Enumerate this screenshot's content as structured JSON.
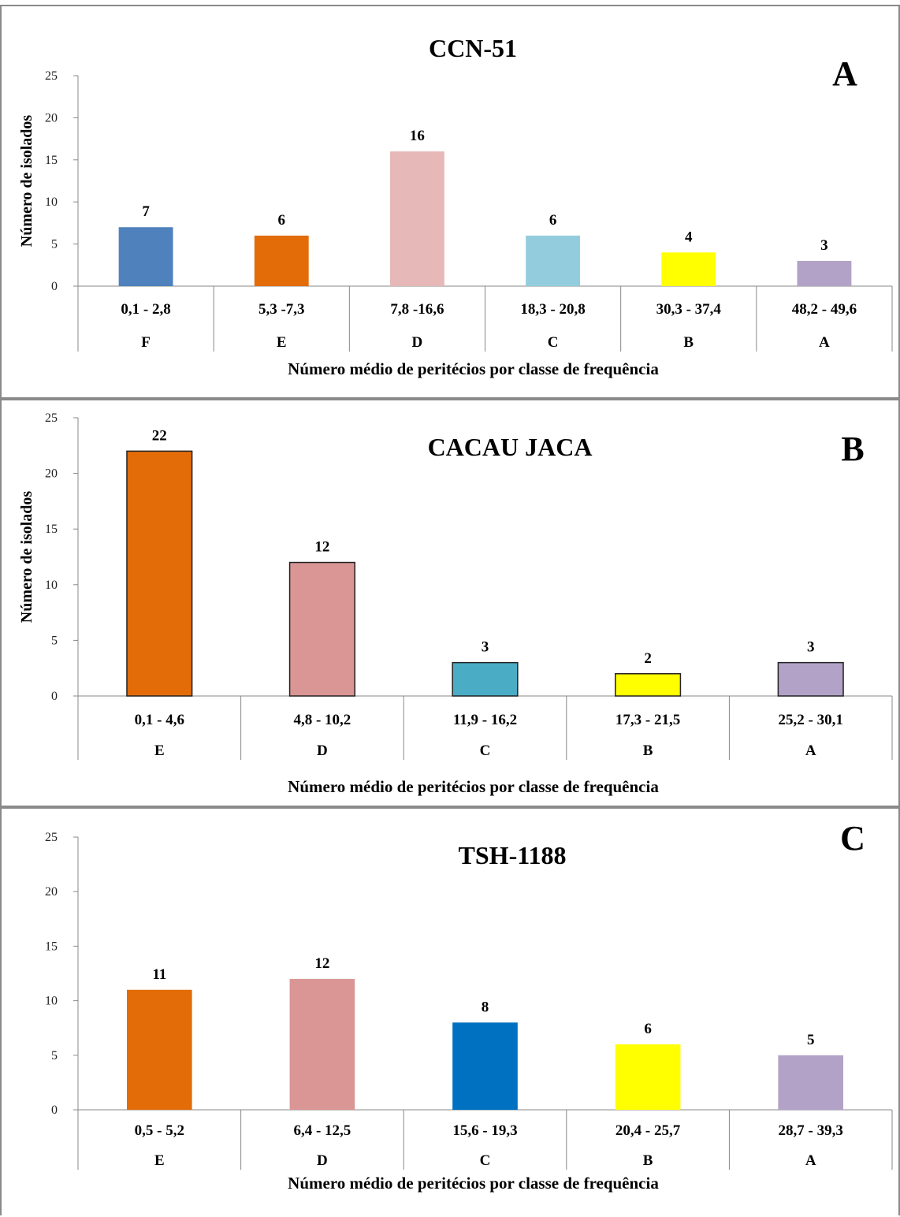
{
  "chart_data": [
    {
      "type": "bar",
      "title": "CCN-51",
      "panel_letter": "A",
      "ylabel": "Número de isolados",
      "xlabel": "Número médio de peritécios por classe de frequência",
      "ylim": [
        0,
        25
      ],
      "yticks": [
        0,
        5,
        10,
        15,
        20,
        25
      ],
      "categories": [
        "0,1 - 2,8",
        "5,3 -7,3",
        "7,8 -16,6",
        "18,3 - 20,8",
        "30,3 - 37,4",
        "48,2 - 49,6"
      ],
      "groups": [
        "F",
        "E",
        "D",
        "C",
        "B",
        "A"
      ],
      "values": [
        7,
        6,
        16,
        6,
        4,
        3
      ],
      "colors": [
        "#4f81bd",
        "#e36c09",
        "#e6b9b8",
        "#93cddd",
        "#ffff00",
        "#b3a2c7"
      ],
      "bar_outline": false,
      "grid": false
    },
    {
      "type": "bar",
      "title": "CACAU JACA",
      "panel_letter": "B",
      "ylabel": "Número de isolados",
      "xlabel": "Número médio de peritécios por classe de frequência",
      "ylim": [
        0,
        25
      ],
      "yticks": [
        0,
        5,
        10,
        15,
        20,
        25
      ],
      "categories": [
        "0,1 - 4,6",
        "4,8 - 10,2",
        "11,9 - 16,2",
        "17,3 - 21,5",
        "25,2 - 30,1"
      ],
      "groups": [
        "E",
        "D",
        "C",
        "B",
        "A"
      ],
      "values": [
        22,
        12,
        3,
        2,
        3
      ],
      "colors": [
        "#e36c09",
        "#d99694",
        "#4bacc6",
        "#ffff00",
        "#b3a2c7"
      ],
      "bar_outline": true,
      "grid": false
    },
    {
      "type": "bar",
      "title": "TSH-1188",
      "panel_letter": "C",
      "ylabel": "",
      "xlabel": "Número médio de peritécios por classe de frequência",
      "ylim": [
        0,
        25
      ],
      "yticks": [
        0,
        5,
        10,
        15,
        20,
        25
      ],
      "categories": [
        "0,5 - 5,2",
        "6,4 - 12,5",
        "15,6 - 19,3",
        "20,4 - 25,7",
        "28,7 - 39,3"
      ],
      "groups": [
        "E",
        "D",
        "C",
        "B",
        "A"
      ],
      "values": [
        11,
        12,
        8,
        6,
        5
      ],
      "colors": [
        "#e36c09",
        "#d99694",
        "#0070c0",
        "#ffff00",
        "#b3a2c7"
      ],
      "bar_outline": false,
      "grid": false
    }
  ]
}
